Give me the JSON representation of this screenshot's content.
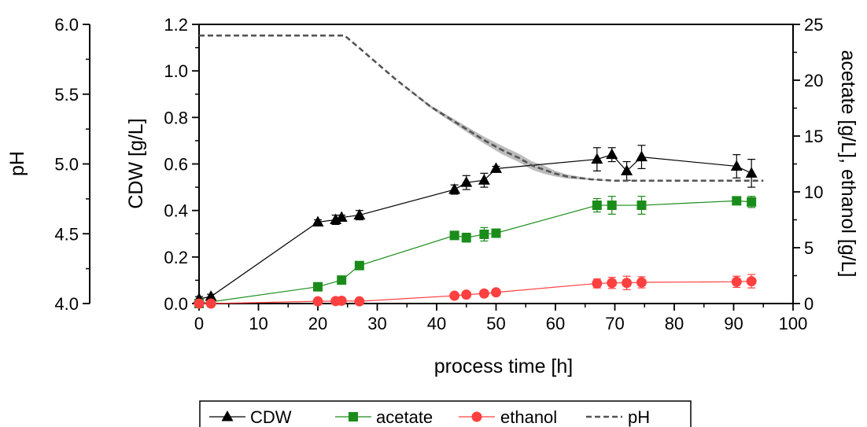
{
  "chart_data": {
    "type": "line",
    "xlabel": "process time [h]",
    "xlim": [
      0,
      100
    ],
    "xticks": [
      "0",
      "10",
      "20",
      "30",
      "40",
      "50",
      "60",
      "70",
      "80",
      "90",
      "100"
    ],
    "ylabel": "CDW [g/L]",
    "ylim": [
      0,
      1.2
    ],
    "yticks": [
      "0.0",
      "0.2",
      "0.4",
      "0.6",
      "0.8",
      "1.0",
      "1.2"
    ],
    "y2label": "acetate [g/L], ethanol [g/L]",
    "y2lim": [
      0,
      25
    ],
    "y2ticks": [
      "0",
      "5",
      "10",
      "15",
      "20",
      "25"
    ],
    "y3label": "pH",
    "y3lim": [
      4.0,
      6.0
    ],
    "y3ticks": [
      "4.0",
      "4.5",
      "5.0",
      "5.5",
      "6.0"
    ],
    "series": [
      {
        "name": "CDW",
        "axis": "left",
        "color": "#000000",
        "marker": "triangle",
        "x": [
          0,
          2,
          20,
          23,
          24,
          27,
          43,
          45,
          48,
          50,
          67,
          69.5,
          72,
          74.5,
          90.5,
          93
        ],
        "y": [
          0.02,
          0.03,
          0.35,
          0.36,
          0.37,
          0.38,
          0.49,
          0.52,
          0.53,
          0.58,
          0.62,
          0.64,
          0.57,
          0.63,
          0.59,
          0.56
        ],
        "err": [
          0.01,
          0.01,
          0.01,
          0.02,
          0.01,
          0.02,
          0.02,
          0.03,
          0.03,
          0.01,
          0.05,
          0.03,
          0.04,
          0.05,
          0.05,
          0.06
        ]
      },
      {
        "name": "acetate",
        "axis": "right",
        "color": "#1a8c1a",
        "marker": "square",
        "x": [
          0,
          20,
          24,
          27,
          43,
          45,
          48,
          50,
          67,
          69.5,
          74.5,
          90.5,
          93
        ],
        "y": [
          0,
          1.5,
          2.1,
          3.4,
          6.1,
          5.9,
          6.2,
          6.3,
          8.8,
          8.8,
          8.8,
          9.2,
          9.1
        ],
        "err": [
          0.1,
          0.1,
          0.15,
          0.2,
          0.2,
          0.4,
          0.6,
          0.3,
          0.6,
          0.8,
          0.8,
          0.3,
          0.5
        ]
      },
      {
        "name": "ethanol",
        "axis": "right",
        "color": "#ff4040",
        "marker": "circle",
        "x": [
          0,
          2,
          20,
          23,
          24,
          27,
          43,
          45,
          48,
          50,
          67,
          69.5,
          72,
          74.5,
          90.5,
          93
        ],
        "y": [
          0,
          0,
          0.2,
          0.22,
          0.25,
          0.2,
          0.7,
          0.8,
          0.9,
          1.0,
          1.8,
          1.85,
          1.85,
          1.9,
          1.95,
          2.0
        ],
        "err": [
          0.05,
          0.05,
          0.05,
          0.05,
          0.05,
          0.05,
          0.1,
          0.1,
          0.1,
          0.1,
          0.4,
          0.5,
          0.6,
          0.5,
          0.5,
          0.6
        ]
      },
      {
        "name": "pH",
        "axis": "far-left",
        "color": "#555555",
        "style": "dashed",
        "x": [
          0,
          24.5,
          27,
          30,
          33,
          36,
          39,
          42,
          45,
          48,
          51,
          54,
          56,
          58,
          60,
          62,
          64,
          66,
          70,
          80,
          90,
          95
        ],
        "y": [
          5.92,
          5.92,
          5.83,
          5.72,
          5.61,
          5.51,
          5.41,
          5.33,
          5.25,
          5.17,
          5.1,
          5.04,
          4.99,
          4.96,
          4.93,
          4.91,
          4.9,
          4.89,
          4.88,
          4.88,
          4.88,
          4.88
        ],
        "band": [
          0,
          0,
          0,
          0,
          0,
          0.005,
          0.01,
          0.015,
          0.02,
          0.025,
          0.03,
          0.03,
          0.03,
          0.03,
          0.02,
          0.015,
          0.01,
          0.005,
          0,
          0,
          0,
          0
        ]
      }
    ],
    "legend": {
      "placement": "bottom-center",
      "entries": [
        "CDW",
        "acetate",
        "ethanol",
        "pH"
      ]
    }
  }
}
